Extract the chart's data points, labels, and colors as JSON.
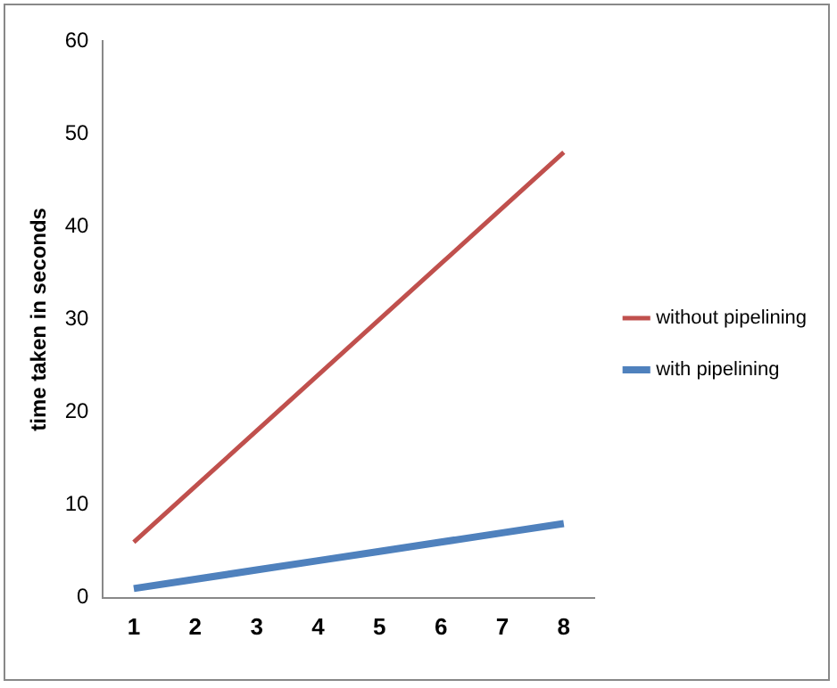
{
  "chart_data": {
    "type": "line",
    "ylabel": "time taken in seconds",
    "categories": [
      "1",
      "2",
      "3",
      "4",
      "5",
      "6",
      "7",
      "8"
    ],
    "series": [
      {
        "name": "without pipelining",
        "color": "#c0504d",
        "values": [
          6,
          12,
          18,
          24,
          30,
          36,
          42,
          48
        ]
      },
      {
        "name": "with pipelining",
        "color": "#4f81bd",
        "values": [
          1,
          2,
          3,
          4,
          5,
          6,
          7,
          8
        ]
      }
    ],
    "ylim": [
      0,
      60
    ],
    "yticks": [
      0,
      10,
      20,
      30,
      40,
      50,
      60
    ],
    "grid": false,
    "legend": "right",
    "marker": "none"
  }
}
